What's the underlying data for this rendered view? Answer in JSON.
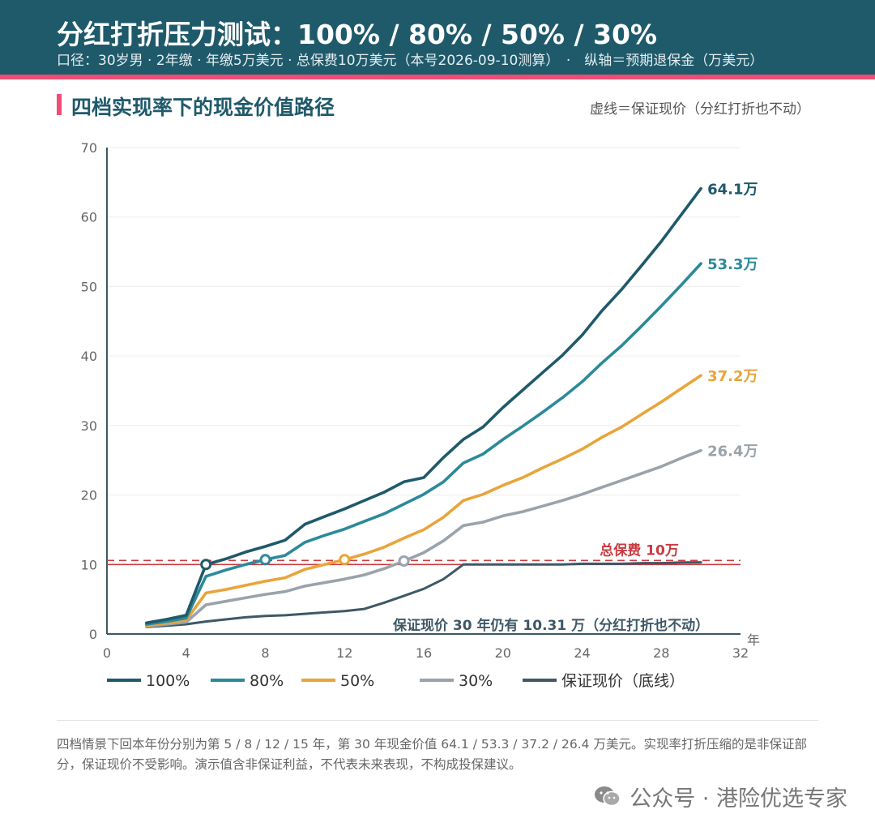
{
  "header": {
    "title": "分红打折压力测试：100% / 80% / 50% / 30%",
    "subtitle": "口径：30岁男 · 2年缴 · 年缴5万美元 · 总保费10万美元（本号2026-09-10测算）　·　纵轴＝预期退保金（万美元）"
  },
  "section": {
    "title": "四档实现率下的现金价值路径",
    "note": "虚线＝保证现价（分红打折也不动）"
  },
  "chart_data": {
    "type": "line",
    "xlim": [
      0,
      32
    ],
    "ylim": [
      0,
      70
    ],
    "x_ticks": [
      "0",
      "4",
      "8",
      "12",
      "16",
      "20",
      "24",
      "28",
      "32"
    ],
    "y_ticks": [
      "0",
      "10",
      "20",
      "30",
      "40",
      "50",
      "60",
      "70"
    ],
    "x_unit_label": "年",
    "grid": "horizontal",
    "legend_position": "bottom",
    "series": [
      {
        "name": "100%",
        "color": "#1f5a6b",
        "end_label": "64.1万",
        "breakeven_year": 5,
        "points": [
          [
            2,
            1.6
          ],
          [
            3,
            2.1
          ],
          [
            4,
            2.7
          ],
          [
            5,
            10.0
          ],
          [
            6,
            10.8
          ],
          [
            7,
            11.8
          ],
          [
            8,
            12.6
          ],
          [
            9,
            13.5
          ],
          [
            10,
            15.8
          ],
          [
            11,
            16.9
          ],
          [
            12,
            18.0
          ],
          [
            13,
            19.2
          ],
          [
            14,
            20.4
          ],
          [
            15,
            21.9
          ],
          [
            16,
            22.5
          ],
          [
            17,
            25.4
          ],
          [
            18,
            28.0
          ],
          [
            19,
            29.8
          ],
          [
            20,
            32.6
          ],
          [
            21,
            35.1
          ],
          [
            22,
            37.6
          ],
          [
            23,
            40.1
          ],
          [
            24,
            43.0
          ],
          [
            25,
            46.5
          ],
          [
            26,
            49.6
          ],
          [
            27,
            53.0
          ],
          [
            28,
            56.5
          ],
          [
            29,
            60.3
          ],
          [
            30,
            64.1
          ]
        ]
      },
      {
        "name": "80%",
        "color": "#2b8a9a",
        "end_label": "53.3万",
        "breakeven_year": 8,
        "points": [
          [
            2,
            1.4
          ],
          [
            3,
            1.8
          ],
          [
            4,
            2.3
          ],
          [
            5,
            8.3
          ],
          [
            6,
            9.2
          ],
          [
            7,
            10.0
          ],
          [
            8,
            10.7
          ],
          [
            9,
            11.3
          ],
          [
            10,
            13.2
          ],
          [
            11,
            14.2
          ],
          [
            12,
            15.1
          ],
          [
            13,
            16.2
          ],
          [
            14,
            17.3
          ],
          [
            15,
            18.7
          ],
          [
            16,
            20.1
          ],
          [
            17,
            21.9
          ],
          [
            18,
            24.6
          ],
          [
            19,
            25.9
          ],
          [
            20,
            28.0
          ],
          [
            21,
            29.9
          ],
          [
            22,
            31.9
          ],
          [
            23,
            34.0
          ],
          [
            24,
            36.3
          ],
          [
            25,
            39.0
          ],
          [
            26,
            41.5
          ],
          [
            27,
            44.3
          ],
          [
            28,
            47.2
          ],
          [
            29,
            50.2
          ],
          [
            30,
            53.3
          ]
        ]
      },
      {
        "name": "50%",
        "color": "#e9a43a",
        "end_label": "37.2万",
        "breakeven_year": 12,
        "points": [
          [
            2,
            1.2
          ],
          [
            3,
            1.6
          ],
          [
            4,
            2.0
          ],
          [
            5,
            5.9
          ],
          [
            6,
            6.4
          ],
          [
            7,
            7.0
          ],
          [
            8,
            7.6
          ],
          [
            9,
            8.1
          ],
          [
            10,
            9.3
          ],
          [
            11,
            10.0
          ],
          [
            12,
            10.7
          ],
          [
            13,
            11.5
          ],
          [
            14,
            12.5
          ],
          [
            15,
            13.8
          ],
          [
            16,
            15.0
          ],
          [
            17,
            16.8
          ],
          [
            18,
            19.2
          ],
          [
            19,
            20.1
          ],
          [
            20,
            21.4
          ],
          [
            21,
            22.5
          ],
          [
            22,
            23.9
          ],
          [
            23,
            25.2
          ],
          [
            24,
            26.6
          ],
          [
            25,
            28.3
          ],
          [
            26,
            29.8
          ],
          [
            27,
            31.6
          ],
          [
            28,
            33.4
          ],
          [
            29,
            35.3
          ],
          [
            30,
            37.2
          ]
        ]
      },
      {
        "name": "30%",
        "color": "#9aa3ab",
        "end_label": "26.4万",
        "breakeven_year": 15,
        "points": [
          [
            2,
            1.1
          ],
          [
            3,
            1.4
          ],
          [
            4,
            1.7
          ],
          [
            5,
            4.2
          ],
          [
            6,
            4.7
          ],
          [
            7,
            5.2
          ],
          [
            8,
            5.7
          ],
          [
            9,
            6.1
          ],
          [
            10,
            6.9
          ],
          [
            11,
            7.4
          ],
          [
            12,
            7.9
          ],
          [
            13,
            8.5
          ],
          [
            14,
            9.4
          ],
          [
            15,
            10.5
          ],
          [
            16,
            11.7
          ],
          [
            17,
            13.4
          ],
          [
            18,
            15.6
          ],
          [
            19,
            16.1
          ],
          [
            20,
            17.0
          ],
          [
            21,
            17.6
          ],
          [
            22,
            18.4
          ],
          [
            23,
            19.2
          ],
          [
            24,
            20.1
          ],
          [
            25,
            21.1
          ],
          [
            26,
            22.1
          ],
          [
            27,
            23.1
          ],
          [
            28,
            24.1
          ],
          [
            29,
            25.3
          ],
          [
            30,
            26.4
          ]
        ]
      },
      {
        "name": "保证现价（底线）",
        "color": "#3e5866",
        "end_label": "",
        "points": [
          [
            2,
            1.0
          ],
          [
            3,
            1.2
          ],
          [
            4,
            1.4
          ],
          [
            5,
            1.8
          ],
          [
            6,
            2.1
          ],
          [
            7,
            2.4
          ],
          [
            8,
            2.6
          ],
          [
            9,
            2.7
          ],
          [
            10,
            2.9
          ],
          [
            11,
            3.1
          ],
          [
            12,
            3.3
          ],
          [
            13,
            3.6
          ],
          [
            14,
            4.5
          ],
          [
            15,
            5.5
          ],
          [
            16,
            6.5
          ],
          [
            17,
            7.9
          ],
          [
            18,
            10.0
          ],
          [
            19,
            10.0
          ],
          [
            20,
            10.0
          ],
          [
            21,
            10.0
          ],
          [
            22,
            10.0
          ],
          [
            23,
            10.0
          ],
          [
            24,
            10.1
          ],
          [
            25,
            10.1
          ],
          [
            26,
            10.1
          ],
          [
            27,
            10.2
          ],
          [
            28,
            10.2
          ],
          [
            29,
            10.3
          ],
          [
            30,
            10.31
          ]
        ]
      }
    ],
    "reference_lines": [
      {
        "label": "总保费 10万",
        "value": 10,
        "color": "#c93c40"
      }
    ],
    "annotation": "保证现价 30 年仍有 10.31 万（分红打折也不动）"
  },
  "footnote": "四档情景下回本年份分别为第 5 / 8 / 12 / 15 年，第 30 年现金价值 64.1 / 53.3 / 37.2 / 26.4 万美元。实现率打折压缩的是非保证部分，保证现价不受影响。演示值含非保证利益，不代表未来表现，不构成投保建议。",
  "footer": {
    "icon": "wechat-icon",
    "text": "公众号 · 港险优选专家"
  }
}
